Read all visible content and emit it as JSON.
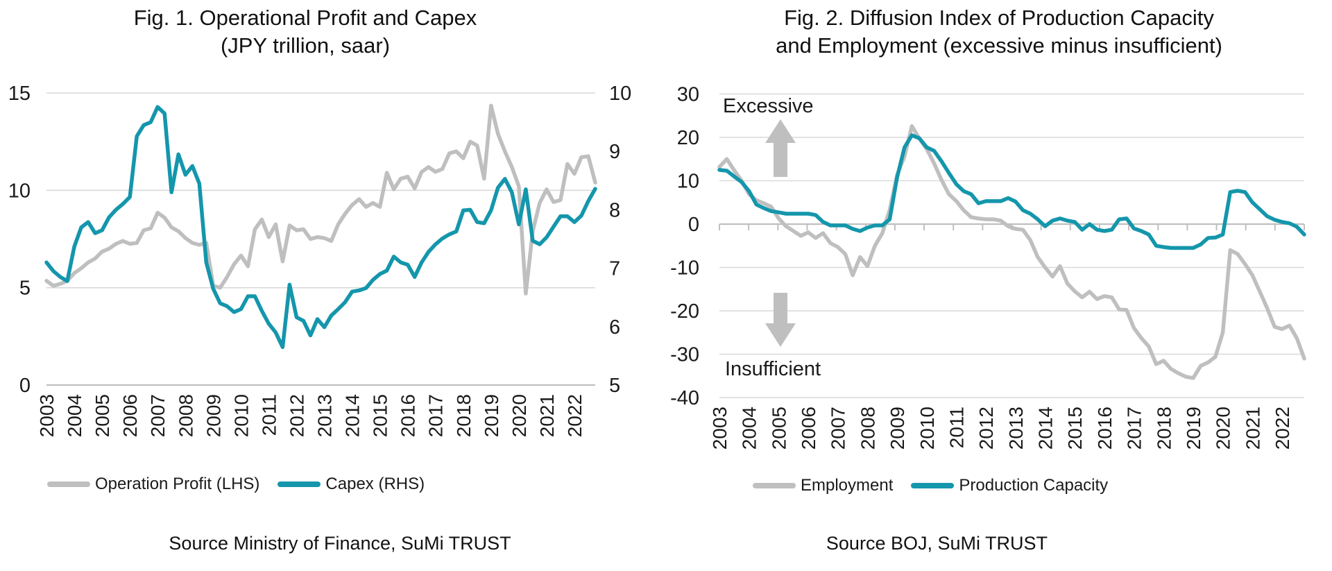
{
  "chart_data": [
    {
      "type": "line",
      "title_lines": [
        "Fig. 1. Operational Profit and Capex",
        "(JPY trillion, saar)"
      ],
      "x": {
        "tick_labels": [
          "2003",
          "2004",
          "2005",
          "2006",
          "2007",
          "2008",
          "2009",
          "2010",
          "2011",
          "2012",
          "2013",
          "2014",
          "2015",
          "2016",
          "2017",
          "2018",
          "2019",
          "2020",
          "2021",
          "2022"
        ],
        "points_per_label": 4
      },
      "y_left": {
        "ticks": [
          0,
          5,
          10,
          15
        ],
        "range": [
          0,
          15
        ]
      },
      "y_right": {
        "ticks": [
          5,
          6,
          7,
          8,
          9,
          10
        ],
        "range": [
          5,
          10
        ]
      },
      "grid": "horizontal-left-ticks",
      "legend_position": "bottom",
      "series": [
        {
          "name": "Operation Profit (LHS)",
          "axis": "left",
          "color": "#BFBFBF",
          "values": [
            5.35,
            5.1,
            5.2,
            5.35,
            5.75,
            6.0,
            6.3,
            6.5,
            6.85,
            7.0,
            7.25,
            7.4,
            7.25,
            7.3,
            7.95,
            8.05,
            8.85,
            8.6,
            8.1,
            7.9,
            7.55,
            7.3,
            7.2,
            7.3,
            5.1,
            5.0,
            5.55,
            6.2,
            6.65,
            6.1,
            8.0,
            8.5,
            7.6,
            8.25,
            6.35,
            8.2,
            7.95,
            8.0,
            7.5,
            7.6,
            7.55,
            7.4,
            8.25,
            8.8,
            9.25,
            9.55,
            9.15,
            9.35,
            9.15,
            10.9,
            10.05,
            10.6,
            10.7,
            10.1,
            10.95,
            11.2,
            10.95,
            11.1,
            11.9,
            12.0,
            11.65,
            12.5,
            12.3,
            10.6,
            14.35,
            12.9,
            12.0,
            11.2,
            10.2,
            4.7,
            7.9,
            9.35,
            10.05,
            9.4,
            9.5,
            11.35,
            10.85,
            11.7,
            11.75,
            10.4
          ]
        },
        {
          "name": "Capex (RHS)",
          "axis": "right",
          "color": "#1496AC",
          "values": [
            7.1,
            6.95,
            6.85,
            6.78,
            7.37,
            7.7,
            7.79,
            7.6,
            7.65,
            7.87,
            8.0,
            8.1,
            8.22,
            9.26,
            9.45,
            9.5,
            9.76,
            9.65,
            8.3,
            8.95,
            8.6,
            8.75,
            8.45,
            7.1,
            6.65,
            6.4,
            6.35,
            6.25,
            6.3,
            6.52,
            6.52,
            6.27,
            6.05,
            5.9,
            5.65,
            6.72,
            6.16,
            6.1,
            5.85,
            6.13,
            5.99,
            6.19,
            6.3,
            6.42,
            6.6,
            6.62,
            6.66,
            6.8,
            6.9,
            6.96,
            7.2,
            7.1,
            7.06,
            6.85,
            7.1,
            7.28,
            7.41,
            7.51,
            7.58,
            7.63,
            7.99,
            8.0,
            7.79,
            7.77,
            7.99,
            8.38,
            8.53,
            8.3,
            7.75,
            8.35,
            7.47,
            7.41,
            7.53,
            7.71,
            7.89,
            7.89,
            7.79,
            7.9,
            8.15,
            8.36
          ]
        }
      ],
      "source": "Source Ministry of Finance, SuMi TRUST"
    },
    {
      "type": "line",
      "title_lines": [
        "Fig. 2. Diffusion Index of Production Capacity",
        "and Employment (excessive minus insufficient)"
      ],
      "x": {
        "tick_labels": [
          "2003",
          "2004",
          "2005",
          "2006",
          "2007",
          "2008",
          "2009",
          "2010",
          "2011",
          "2012",
          "2013",
          "2014",
          "2015",
          "2016",
          "2017",
          "2018",
          "2019",
          "2020",
          "2021",
          "2022"
        ],
        "points_per_label": 4
      },
      "y": {
        "ticks": [
          -40,
          -30,
          -20,
          -10,
          0,
          10,
          20,
          30
        ],
        "range": [
          -40,
          30
        ]
      },
      "grid": "horizontal-all-ticks",
      "legend_position": "bottom",
      "annotations": [
        {
          "text": "Excessive",
          "arrow": "up"
        },
        {
          "text": "Insufficient",
          "arrow": "down"
        }
      ],
      "series": [
        {
          "name": "Employment",
          "axis": "left",
          "color": "#BFBFBF",
          "values": [
            13.2,
            15.0,
            12.4,
            10.0,
            6.9,
            5.5,
            4.8,
            4.0,
            1.3,
            -0.5,
            -1.6,
            -2.7,
            -1.9,
            -3.2,
            -2.1,
            -4.4,
            -5.3,
            -6.9,
            -11.8,
            -7.6,
            -9.7,
            -5.0,
            -2.1,
            3.2,
            11.3,
            15.6,
            22.6,
            19.8,
            17.3,
            14.0,
            10.2,
            6.9,
            5.3,
            3.2,
            1.6,
            1.3,
            1.1,
            1.1,
            0.8,
            -0.5,
            -1.1,
            -1.3,
            -3.7,
            -7.6,
            -10.0,
            -12.1,
            -9.7,
            -13.7,
            -15.5,
            -16.9,
            -15.6,
            -17.3,
            -16.6,
            -16.9,
            -19.7,
            -19.8,
            -24.0,
            -26.3,
            -28.2,
            -32.3,
            -31.5,
            -33.4,
            -34.4,
            -35.2,
            -35.5,
            -32.7,
            -31.9,
            -30.6,
            -25.0,
            -6.0,
            -6.9,
            -9.2,
            -11.8,
            -15.6,
            -19.4,
            -23.7,
            -24.2,
            -23.4,
            -26.3,
            -31.0
          ]
        },
        {
          "name": "Production Capacity",
          "axis": "left",
          "color": "#1496AC",
          "values": [
            12.5,
            12.3,
            11.0,
            9.7,
            7.6,
            4.5,
            3.7,
            3.0,
            2.7,
            2.4,
            2.4,
            2.4,
            2.4,
            2.1,
            0.5,
            -0.3,
            -0.3,
            -0.3,
            -1.1,
            -1.6,
            -0.8,
            -0.3,
            -0.3,
            1.1,
            10.8,
            17.7,
            20.5,
            19.8,
            17.7,
            16.9,
            14.5,
            11.8,
            9.2,
            7.6,
            6.9,
            4.8,
            5.3,
            5.3,
            5.3,
            6.0,
            5.2,
            3.2,
            2.4,
            1.1,
            -0.5,
            0.8,
            1.3,
            0.8,
            0.5,
            -1.3,
            0.0,
            -1.3,
            -1.6,
            -1.3,
            1.1,
            1.3,
            -1.0,
            -1.6,
            -2.4,
            -5.0,
            -5.3,
            -5.5,
            -5.5,
            -5.5,
            -5.5,
            -4.7,
            -3.2,
            -3.1,
            -2.4,
            7.4,
            7.7,
            7.4,
            5.0,
            3.4,
            1.8,
            1.0,
            0.5,
            0.2,
            -0.6,
            -2.4
          ]
        }
      ],
      "source": "Source BOJ, SuMi TRUST"
    }
  ]
}
